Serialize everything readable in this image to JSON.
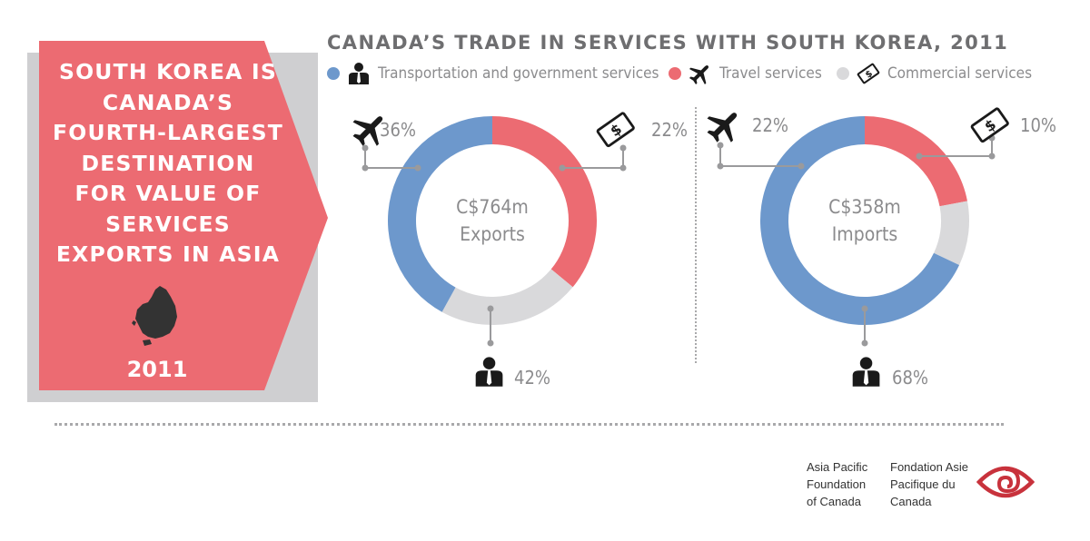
{
  "banner": {
    "headline_lines": [
      "South Korea is",
      "Canada’s",
      "fourth-largest",
      "destination",
      "for value of",
      "services",
      "exports in Asia"
    ],
    "year": "2011",
    "colors": {
      "fill": "#ec6b72",
      "shadow": "#cfcfd1"
    }
  },
  "legend": {
    "items": [
      {
        "label": "Transportation and government services",
        "color": "#6d98cc",
        "icon": "person-icon"
      },
      {
        "label": "Travel services",
        "color": "#ec6b72",
        "icon": "airplane-icon"
      },
      {
        "label": "Commercial services",
        "color": "#d9d9db",
        "icon": "money-bill-icon"
      }
    ]
  },
  "chart_data": {
    "title": "CANADA’S TRADE IN SERVICES WITH SOUTH KOREA, 2011",
    "type": "pie",
    "charts": [
      {
        "center_label": [
          "C$764m",
          "Exports"
        ],
        "slices": [
          {
            "category": "Travel services",
            "value": 36,
            "label": "36%",
            "color": "#ec6b72"
          },
          {
            "category": "Commercial services",
            "value": 22,
            "label": "22%",
            "color": "#d9d9db"
          },
          {
            "category": "Transportation and government services",
            "value": 42,
            "label": "42%",
            "color": "#6d98cc"
          }
        ]
      },
      {
        "center_label": [
          "C$358m",
          "Imports"
        ],
        "slices": [
          {
            "category": "Travel services",
            "value": 22,
            "label": "22%",
            "color": "#ec6b72"
          },
          {
            "category": "Commercial services",
            "value": 10,
            "label": "10%",
            "color": "#d9d9db"
          },
          {
            "category": "Transportation and government services",
            "value": 68,
            "label": "68%",
            "color": "#6d98cc"
          }
        ]
      }
    ]
  },
  "footer": {
    "org_en": "Asia Pacific\nFoundation\nof Canada",
    "org_fr": "Fondation Asie\nPacifique du\nCanada",
    "logo_color": "#c8323c"
  }
}
